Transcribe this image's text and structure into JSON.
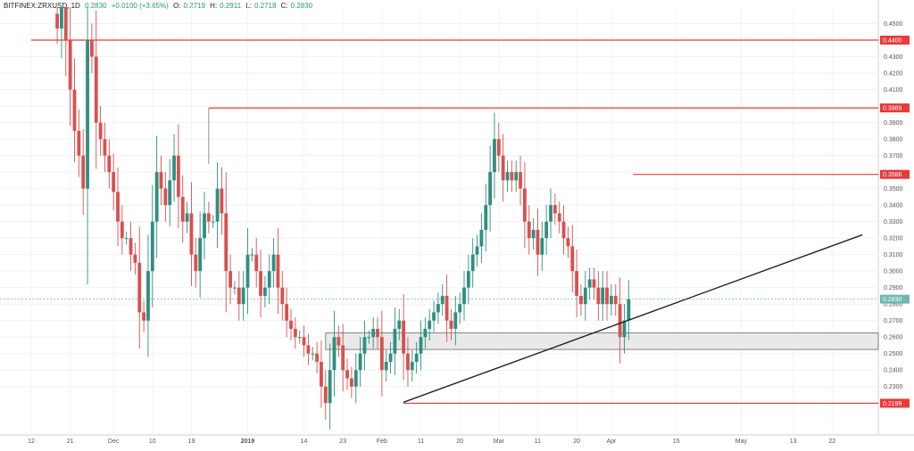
{
  "header": {
    "symbol": "BITFINEX:ZRXUSD, 1D",
    "last": "0.2830",
    "change": "+0.0100 (+3.65%)",
    "o_label": "O:",
    "o": "0.2719",
    "h_label": "H:",
    "h": "0.2911",
    "l_label": "L:",
    "l": "0.2718",
    "c_label": "C:",
    "c": "0.2830"
  },
  "colors": {
    "up": "#2f8f7f",
    "down": "#d9504f",
    "level": "#e8393b",
    "trend": "#222222",
    "current": "#6fb7b0",
    "zone": "#e9e9e9"
  },
  "chart_data": {
    "type": "candlestick",
    "ylim": [
      0.205,
      0.46
    ],
    "y_ticks": [
      "0.2300",
      "0.2400",
      "0.2500",
      "0.2600",
      "0.2700",
      "0.2800",
      "0.2900",
      "0.3000",
      "0.3100",
      "0.3200",
      "0.3300",
      "0.3400",
      "0.3500",
      "0.3600",
      "0.3700",
      "0.3800",
      "0.3900",
      "0.4000",
      "0.4100",
      "0.4200",
      "0.4300",
      "0.4500"
    ],
    "x_ticks": [
      "12",
      "21",
      "Dec",
      "10",
      "19",
      "2019",
      "14",
      "23",
      "Feb",
      "11",
      "20",
      "Mar",
      "11",
      "20",
      "Apr",
      "15",
      "May",
      "13",
      "22"
    ],
    "x_tick_days": [
      0,
      9,
      19,
      28,
      37,
      50,
      63,
      72,
      81,
      90,
      99,
      108,
      117,
      126,
      134,
      149,
      164,
      176,
      185
    ],
    "start_date": "2018-11-12",
    "price_labels": [
      {
        "value": 0.44,
        "text": "0.4400"
      },
      {
        "value": 0.3989,
        "text": "0.3989"
      },
      {
        "value": 0.3586,
        "text": "0.3586"
      },
      {
        "value": 0.2199,
        "text": "0.2199"
      }
    ],
    "current_price": {
      "value": 0.283,
      "text": "0.2830"
    },
    "levels": [
      {
        "value": 0.44,
        "from_day": 0
      },
      {
        "value": 0.3989,
        "from_day": 41
      },
      {
        "value": 0.3586,
        "from_day": 139
      },
      {
        "value": 0.2199,
        "from_day": 86
      }
    ],
    "zone": {
      "from_day": 68,
      "low": 0.2525,
      "high": 0.2625
    },
    "trendline": {
      "from_day": 86,
      "from_value": 0.2205,
      "to_day": 192,
      "to_value": 0.322
    },
    "candles_close": [
      0.447,
      0.47,
      0.44,
      0.41,
      0.385,
      0.37,
      0.35,
      0.44,
      0.43,
      0.39,
      0.38,
      0.37,
      0.36,
      0.348,
      0.33,
      0.32,
      0.32,
      0.31,
      0.305,
      0.275,
      0.27,
      0.3,
      0.33,
      0.36,
      0.35,
      0.34,
      0.355,
      0.37,
      0.345,
      0.33,
      0.335,
      0.31,
      0.3,
      0.32,
      0.335,
      0.33,
      0.33,
      0.35,
      0.335,
      0.3,
      0.29,
      0.29,
      0.28,
      0.29,
      0.31,
      0.31,
      0.3,
      0.285,
      0.29,
      0.3,
      0.31,
      0.29,
      0.28,
      0.27,
      0.265,
      0.26,
      0.26,
      0.255,
      0.25,
      0.25,
      0.245,
      0.23,
      0.22,
      0.24,
      0.26,
      0.255,
      0.24,
      0.235,
      0.23,
      0.24,
      0.25,
      0.26,
      0.26,
      0.265,
      0.26,
      0.24,
      0.245,
      0.25,
      0.265,
      0.27,
      0.25,
      0.24,
      0.245,
      0.25,
      0.26,
      0.265,
      0.27,
      0.275,
      0.28,
      0.285,
      0.27,
      0.265,
      0.275,
      0.28,
      0.29,
      0.3,
      0.31,
      0.315,
      0.325,
      0.34,
      0.36,
      0.38,
      0.37,
      0.355,
      0.36,
      0.355,
      0.36,
      0.35,
      0.33,
      0.32,
      0.325,
      0.31,
      0.32,
      0.33,
      0.34,
      0.335,
      0.33,
      0.32,
      0.315,
      0.3,
      0.285,
      0.28,
      0.29,
      0.295,
      0.29,
      0.28,
      0.29,
      0.28,
      0.285,
      0.28,
      0.26,
      0.27,
      0.283
    ]
  }
}
